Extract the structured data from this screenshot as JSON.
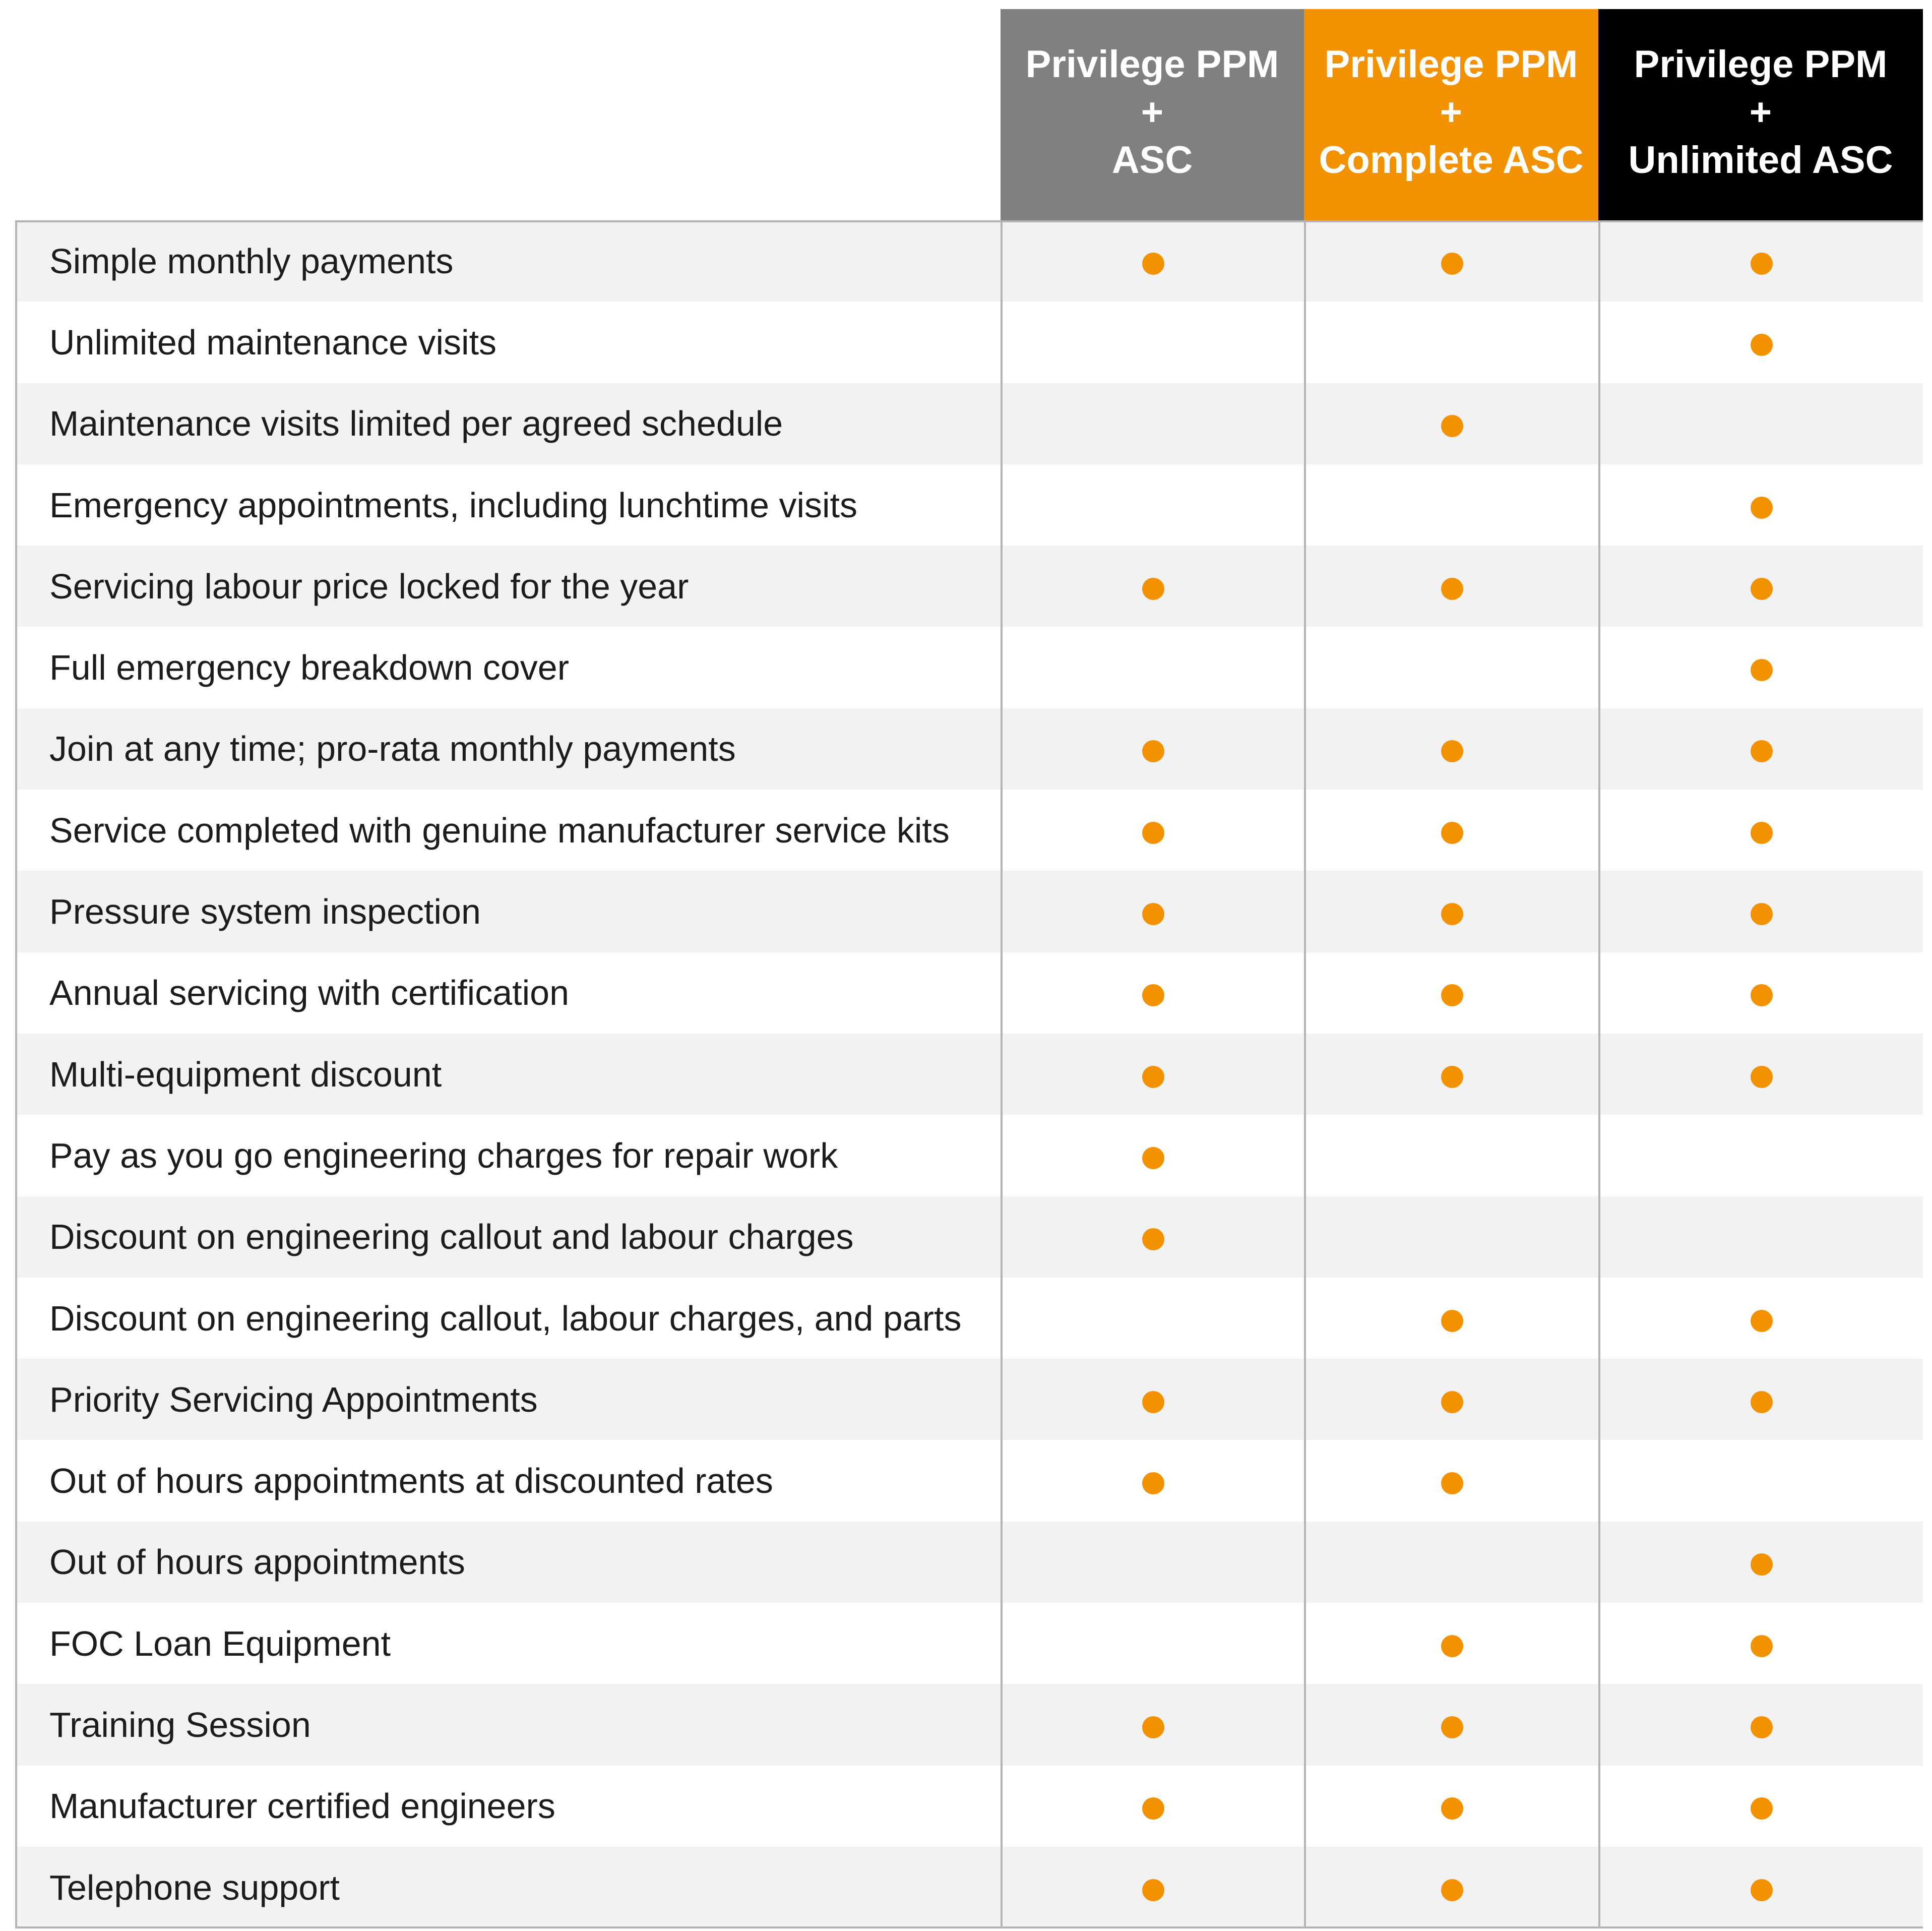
{
  "colors": {
    "dot": "#f39200",
    "row_alt": "#f2f2f2",
    "row_base": "#ffffff",
    "grid_line": "#b4b4b4"
  },
  "plans": [
    {
      "line1": "Privilege PPM",
      "line2": "+",
      "line3": "ASC",
      "bg": "#808080",
      "icon": "check-dot-icon"
    },
    {
      "line1": "Privilege PPM",
      "line2": "+",
      "line3": "Complete ASC",
      "bg": "#f39200",
      "icon": "check-dot-icon"
    },
    {
      "line1": "Privilege PPM",
      "line2": "+",
      "line3": "Unlimited ASC",
      "bg": "#000000",
      "icon": "check-dot-icon"
    }
  ],
  "features": [
    {
      "label": "Simple monthly payments",
      "included": [
        true,
        true,
        true
      ]
    },
    {
      "label": "Unlimited maintenance visits",
      "included": [
        false,
        false,
        true
      ]
    },
    {
      "label": "Maintenance visits limited per agreed schedule",
      "included": [
        false,
        true,
        false
      ]
    },
    {
      "label": "Emergency appointments, including lunchtime visits",
      "included": [
        false,
        false,
        true
      ]
    },
    {
      "label": "Servicing labour price locked for the year",
      "included": [
        true,
        true,
        true
      ]
    },
    {
      "label": "Full emergency breakdown cover",
      "included": [
        false,
        false,
        true
      ]
    },
    {
      "label": "Join at any time; pro-rata monthly payments",
      "included": [
        true,
        true,
        true
      ]
    },
    {
      "label": "Service completed with genuine manufacturer service kits",
      "included": [
        true,
        true,
        true
      ]
    },
    {
      "label": "Pressure system inspection",
      "included": [
        true,
        true,
        true
      ]
    },
    {
      "label": "Annual servicing with certification",
      "included": [
        true,
        true,
        true
      ]
    },
    {
      "label": "Multi-equipment discount",
      "included": [
        true,
        true,
        true
      ]
    },
    {
      "label": "Pay as you go engineering charges for repair work",
      "included": [
        true,
        false,
        false
      ]
    },
    {
      "label": "Discount on engineering callout and labour charges",
      "included": [
        true,
        false,
        false
      ]
    },
    {
      "label": "Discount on engineering callout, labour charges, and parts",
      "included": [
        false,
        true,
        true
      ]
    },
    {
      "label": "Priority Servicing Appointments",
      "included": [
        true,
        true,
        true
      ]
    },
    {
      "label": "Out of hours appointments at discounted rates",
      "included": [
        true,
        true,
        false
      ]
    },
    {
      "label": "Out of hours appointments",
      "included": [
        false,
        false,
        true
      ]
    },
    {
      "label": "FOC Loan Equipment",
      "included": [
        false,
        true,
        true
      ]
    },
    {
      "label": "Training Session",
      "included": [
        true,
        true,
        true
      ]
    },
    {
      "label": "Manufacturer certified engineers",
      "included": [
        true,
        true,
        true
      ]
    },
    {
      "label": "Telephone support",
      "included": [
        true,
        true,
        true
      ]
    }
  ]
}
